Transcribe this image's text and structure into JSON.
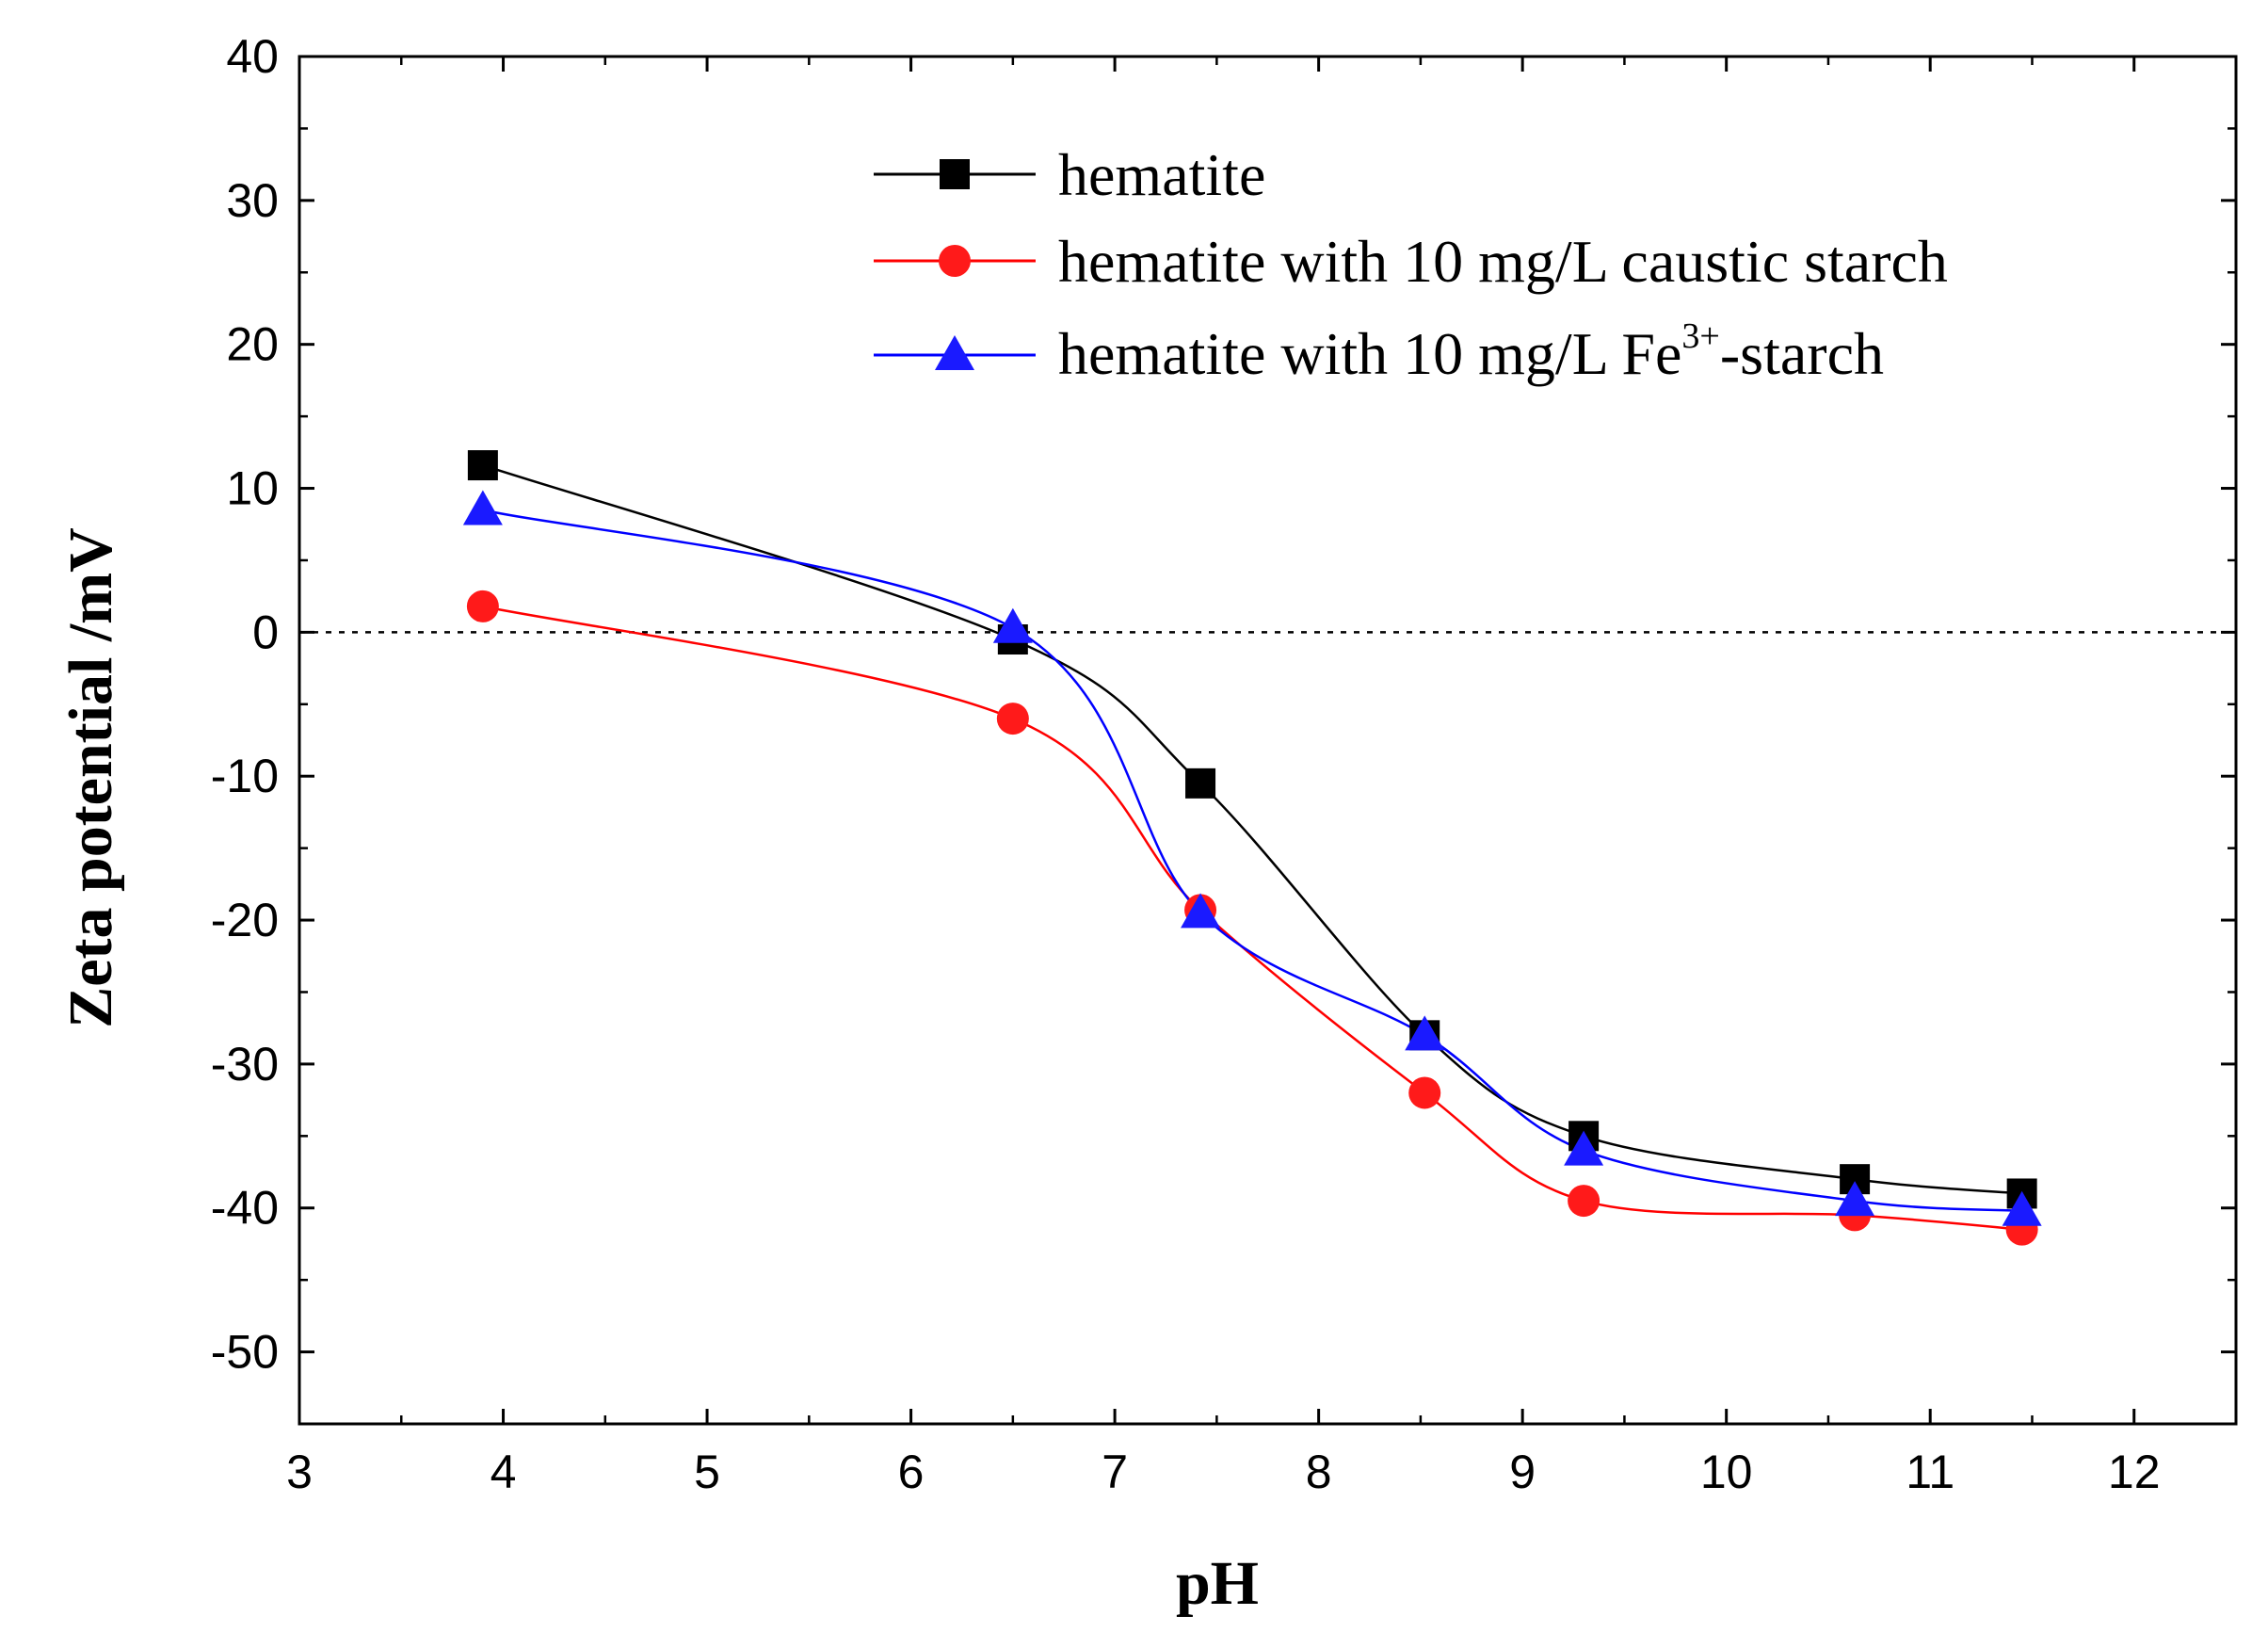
{
  "chart_data": {
    "type": "line",
    "xlabel": "pH",
    "ylabel": "Zeta potential /mV",
    "xlim": [
      3,
      12.5
    ],
    "ylim": [
      -55,
      40
    ],
    "xticks": [
      3,
      4,
      5,
      6,
      7,
      8,
      9,
      10,
      11,
      12
    ],
    "yticks": [
      40,
      30,
      20,
      10,
      0,
      -10,
      -20,
      -30,
      -40,
      -50
    ],
    "reference_line": {
      "y": 0,
      "style": "dotted"
    },
    "legend_position": "top-right",
    "series": [
      {
        "name": "hematite",
        "color": "#000000",
        "marker": "square",
        "x": [
          3.9,
          6.5,
          7.42,
          8.52,
          9.3,
          10.63,
          11.45
        ],
        "values": [
          11.6,
          -0.5,
          -10.5,
          -28,
          -35,
          -38,
          -39
        ]
      },
      {
        "name": "hematite with 10 mg/L caustic starch",
        "color": "#ff0000",
        "marker": "circle",
        "x": [
          3.9,
          6.5,
          7.42,
          8.52,
          9.3,
          10.63,
          11.45
        ],
        "values": [
          1.8,
          -6,
          -19.3,
          -32,
          -39.5,
          -40.5,
          -41.5
        ]
      },
      {
        "name": "hematite with 10 mg/L Fe3+-starch",
        "legend_parts": {
          "before": "hematite with 10 mg/L Fe",
          "sup": "3+",
          "after": "-starch"
        },
        "color": "#0000ff",
        "marker": "triangle",
        "x": [
          3.9,
          6.5,
          7.42,
          8.52,
          9.3,
          10.63,
          11.45
        ],
        "values": [
          8.5,
          0.3,
          -19.5,
          -28,
          -36,
          -39.5,
          -40.2
        ]
      }
    ]
  }
}
